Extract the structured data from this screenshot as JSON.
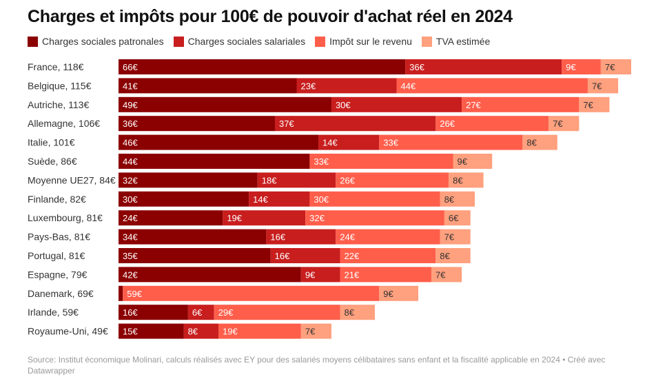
{
  "chart_data": {
    "type": "bar",
    "orientation": "horizontal",
    "stacked": true,
    "title": "Charges et impôts pour 100€ de pouvoir d'achat réel en 2024",
    "categories": [
      "France, 118€",
      "Belgique, 115€",
      "Autriche, 113€",
      "Allemagne, 106€",
      "Italie, 101€",
      "Suède, 86€",
      "Moyenne UE27, 84€",
      "Finlande, 82€",
      "Luxembourg, 81€",
      "Pays-Bas, 81€",
      "Portugal, 81€",
      "Espagne, 79€",
      "Danemark, 69€",
      "Irlande, 59€",
      "Royaume-Uni, 49€"
    ],
    "series": [
      {
        "name": "Charges sociales patronales",
        "color": "#8b0000",
        "values": [
          66,
          41,
          49,
          36,
          46,
          44,
          32,
          30,
          24,
          34,
          35,
          42,
          1,
          16,
          15
        ]
      },
      {
        "name": "Charges sociales salariales",
        "color": "#c81e1e",
        "values": [
          36,
          23,
          30,
          37,
          14,
          0,
          18,
          14,
          19,
          16,
          16,
          9,
          0,
          6,
          8
        ]
      },
      {
        "name": "Impôt sur le revenu",
        "color": "#ff5e4b",
        "values": [
          9,
          44,
          27,
          26,
          33,
          33,
          26,
          30,
          32,
          24,
          22,
          21,
          59,
          29,
          19
        ]
      },
      {
        "name": "TVA estimée",
        "color": "#ffa07e",
        "values": [
          7,
          7,
          7,
          7,
          8,
          9,
          8,
          8,
          6,
          7,
          8,
          7,
          9,
          8,
          7
        ]
      }
    ],
    "value_suffix": "€",
    "xlim": [
      0,
      118
    ],
    "legend_position": "top-left",
    "grid": false
  },
  "source": "Source: Institut économique Molinari, calculs réalisés avec EY pour des salariés moyens célibataires sans enfant et la fiscalité applicable en 2024 • Créé avec Datawrapper"
}
